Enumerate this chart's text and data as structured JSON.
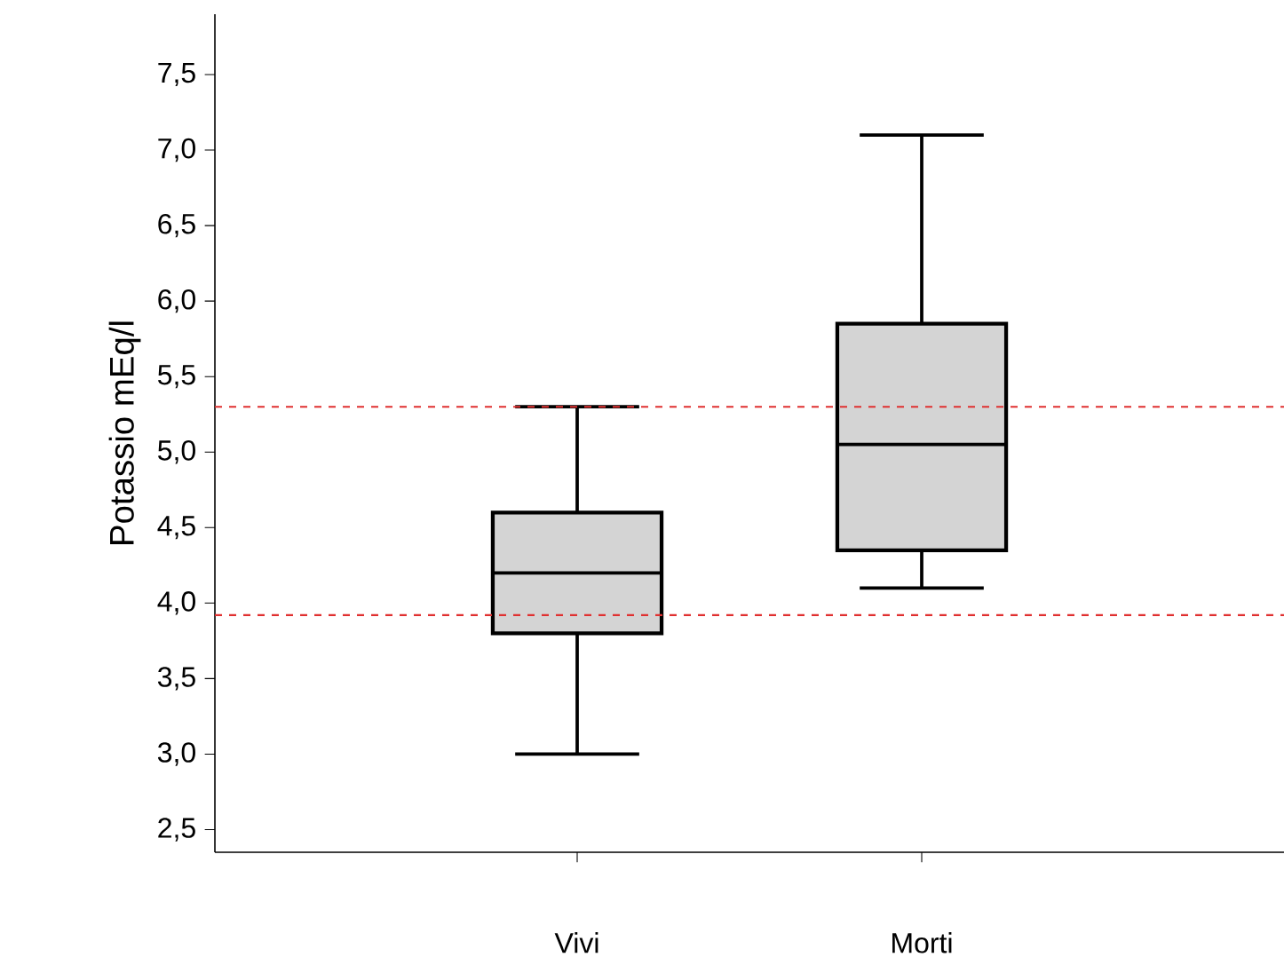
{
  "chart_data": {
    "type": "box",
    "ylabel": "Potassio mEq/l",
    "categories": [
      "Vivi",
      "Morti"
    ],
    "series": [
      {
        "color": "#d4d4d4",
        "boxes": [
          {
            "low": 3.0,
            "q1": 3.8,
            "median": 4.2,
            "q3": 4.6,
            "high": 5.3
          },
          {
            "low": 4.1,
            "q1": 4.35,
            "median": 5.05,
            "q3": 5.85,
            "high": 7.1
          }
        ]
      }
    ],
    "ylim": [
      2.35,
      7.9
    ],
    "yticks": [
      {
        "value": 2.5,
        "label": "2,5"
      },
      {
        "value": 3.0,
        "label": "3,0"
      },
      {
        "value": 3.5,
        "label": "3,5"
      },
      {
        "value": 4.0,
        "label": "4,0"
      },
      {
        "value": 4.5,
        "label": "4,5"
      },
      {
        "value": 5.0,
        "label": "5,0"
      },
      {
        "value": 5.5,
        "label": "5,5"
      },
      {
        "value": 6.0,
        "label": "6,0"
      },
      {
        "value": 6.5,
        "label": "6,5"
      },
      {
        "value": 7.0,
        "label": "7,0"
      },
      {
        "value": 7.5,
        "label": "7,5"
      }
    ],
    "ref_lines": [
      {
        "axis": "y",
        "value": 5.3,
        "color": "#e03030",
        "line_style": "dashed"
      },
      {
        "axis": "y",
        "value": 3.92,
        "color": "#e03030",
        "line_style": "dashed"
      }
    ]
  }
}
